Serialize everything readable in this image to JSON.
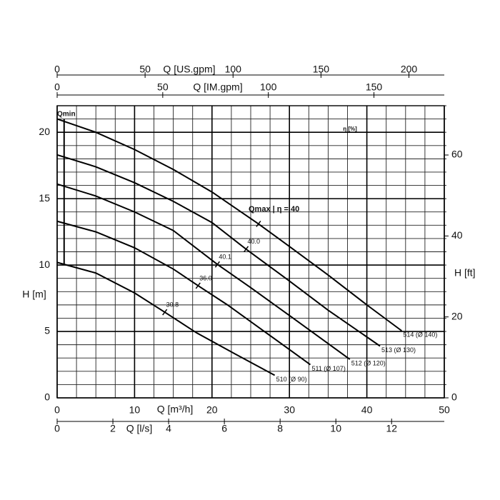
{
  "chart_data": {
    "type": "line",
    "x_label": "Q [m³/h]",
    "y_label": "H [m]",
    "xlim": [
      0,
      50
    ],
    "xticks": [
      0,
      10,
      20,
      30,
      40,
      50
    ],
    "ylim": [
      0,
      22
    ],
    "yticks": [
      0,
      5,
      10,
      15,
      20
    ],
    "x_minor_ticks": [
      0,
      2.5,
      5,
      7.5,
      10,
      12.5,
      15,
      17.5,
      20,
      22.5,
      25,
      27.5,
      30,
      32.5,
      35,
      37.5,
      40,
      42.5,
      45,
      47.5,
      50
    ],
    "y_minor_ticks": [
      0,
      1,
      2,
      3,
      4,
      5,
      6,
      7,
      8,
      9,
      10,
      11,
      12,
      13,
      14,
      15,
      16,
      17,
      18,
      19,
      20,
      21,
      22
    ],
    "grid": true,
    "y2_label": "H [ft]",
    "y2lim": [
      0,
      72.18
    ],
    "y2ticks": [
      0,
      20,
      40,
      60
    ],
    "x_axes": [
      {
        "label": "Q [US.gpm]",
        "lim": [
          0,
          220.1
        ],
        "ticks": [
          0,
          50,
          100,
          150,
          200
        ]
      },
      {
        "label": "Q [IM.gpm]",
        "lim": [
          0,
          183.3
        ],
        "ticks": [
          0,
          50,
          100,
          150
        ]
      },
      {
        "label": "Q [l/s]",
        "lim": [
          0,
          13.89
        ],
        "ticks": [
          0,
          2,
          4,
          6,
          8,
          10,
          12
        ]
      }
    ],
    "series": [
      {
        "name": "514 (Ø 140)",
        "color": "#000000",
        "x": [
          0,
          5,
          10,
          15,
          20,
          26,
          30,
          35,
          40,
          44.5
        ],
        "values": [
          21.0,
          20.0,
          18.7,
          17.2,
          15.5,
          13.1,
          11.4,
          9.25,
          7.0,
          5.05
        ]
      },
      {
        "name": "513 (Ø 130)",
        "color": "#000000",
        "x": [
          0,
          5,
          10,
          15,
          20,
          24.4,
          30,
          35,
          41.7
        ],
        "values": [
          18.3,
          17.4,
          16.2,
          14.8,
          13.2,
          11.2,
          8.8,
          6.6,
          3.9
        ]
      },
      {
        "name": "512 (Ø 120)",
        "color": "#000000",
        "x": [
          0,
          5,
          10,
          15,
          20.7,
          25,
          30,
          37.8
        ],
        "values": [
          16.1,
          15.2,
          14.0,
          12.6,
          10.05,
          8.3,
          6.2,
          2.9
        ]
      },
      {
        "name": "511 (Ø 107)",
        "color": "#000000",
        "x": [
          0,
          5,
          10,
          15,
          18.2,
          22,
          27,
          32.7
        ],
        "values": [
          13.3,
          12.5,
          11.3,
          9.7,
          8.45,
          7.0,
          4.9,
          2.5
        ]
      },
      {
        "name": "510 (Ø 90)",
        "color": "#000000",
        "x": [
          0,
          5,
          10,
          13.9,
          18,
          23,
          28.1
        ],
        "values": [
          10.2,
          9.4,
          7.9,
          6.45,
          4.9,
          3.3,
          1.7
        ]
      }
    ],
    "efficiency_points": {
      "x": [
        24.4,
        20.7,
        18.2,
        13.9
      ],
      "y": [
        11.2,
        10.05,
        8.45,
        6.45
      ],
      "values": [
        40,
        40.1,
        36,
        30.8
      ],
      "value_labels": [
        "40.0",
        "40.1",
        "36.0",
        "30.8"
      ]
    },
    "efficiency_unit": "η [%]",
    "qmax": {
      "label": "Qmax | η = 40",
      "x": 26,
      "y": 13.1
    },
    "qmin": {
      "label": "Qmin",
      "x": 0.9,
      "y": [
        21,
        10
      ]
    }
  }
}
